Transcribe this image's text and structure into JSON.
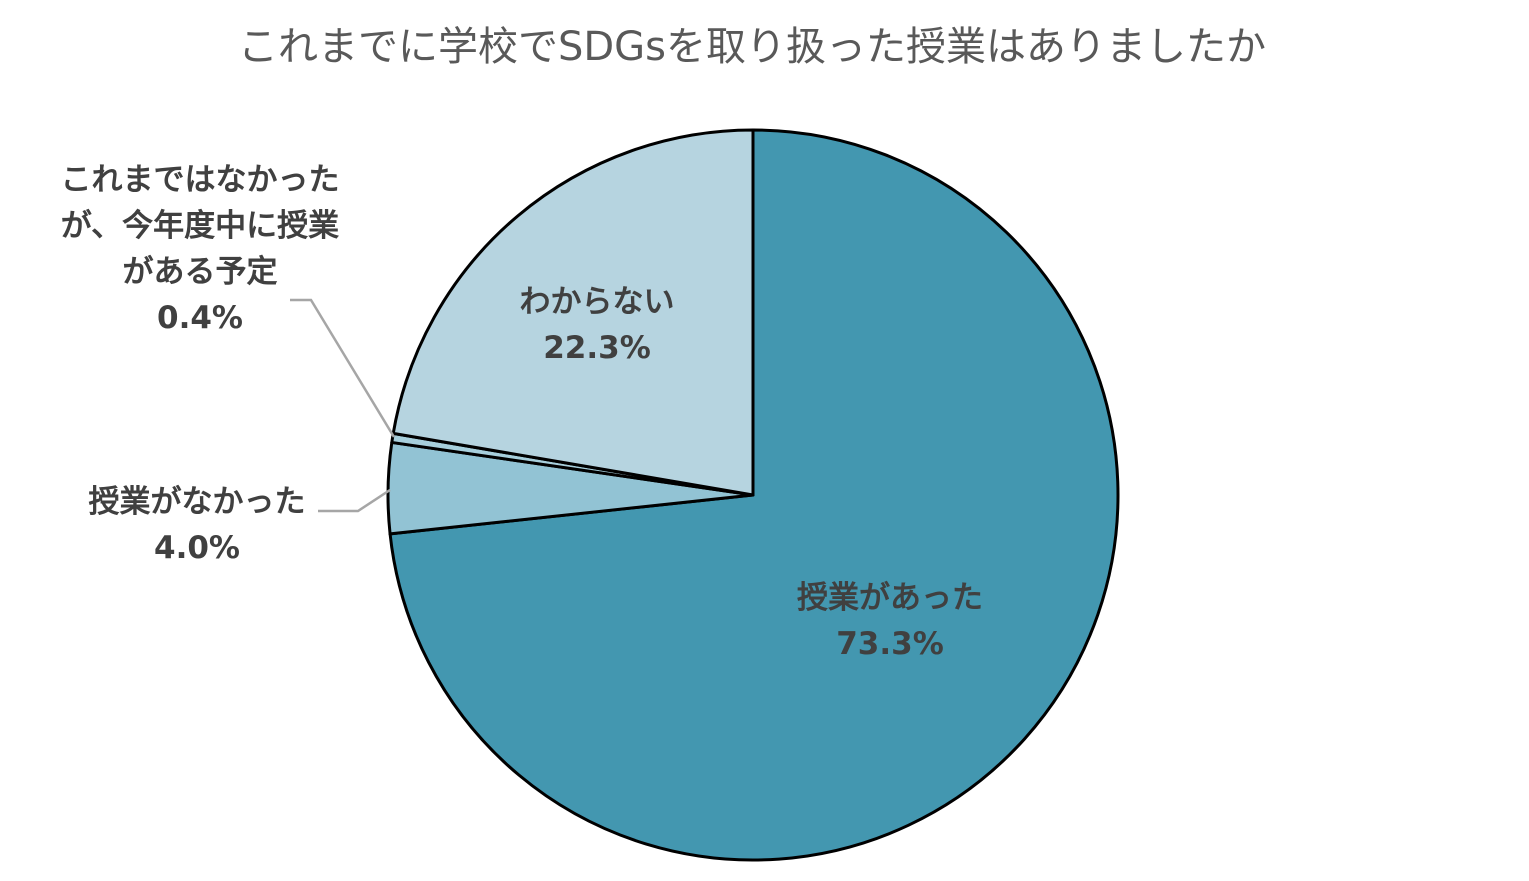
{
  "chart_data": {
    "type": "pie",
    "title": "これまでに学校でSDGsを取り扱った授業はありましたか",
    "start_angle_deg": 0,
    "direction": "clockwise",
    "legend": "none",
    "slices": [
      {
        "label": "授業があった",
        "value": 73.3,
        "value_label": "73.3%",
        "label_lines": [
          "授業があった"
        ],
        "color": "#4397b0",
        "label_position": "inside"
      },
      {
        "label": "授業がなかった",
        "value": 4.0,
        "value_label": "4.0%",
        "label_lines": [
          "授業がなかった"
        ],
        "color": "#92c3d4",
        "label_position": "outside-left"
      },
      {
        "label": "これまではなかったが、今年度中に授業がある予定",
        "value": 0.4,
        "value_label": "0.4%",
        "label_lines": [
          "これまではなかった",
          "が、今年度中に授業",
          "がある予定"
        ],
        "color": "#a7cfdc",
        "label_position": "outside-upper-left"
      },
      {
        "label": "わからない",
        "value": 22.3,
        "value_label": "22.3%",
        "label_lines": [
          "わからない"
        ],
        "color": "#b6d4e0",
        "label_position": "inside"
      }
    ]
  }
}
